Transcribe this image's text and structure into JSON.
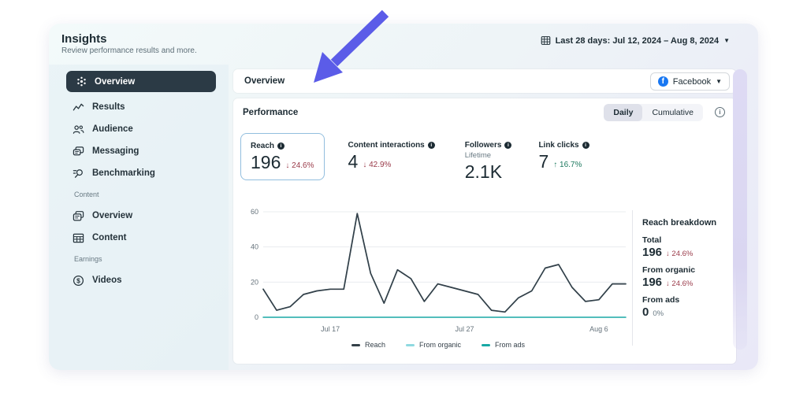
{
  "page": {
    "title": "Insights",
    "subtitle": "Review performance results and more.",
    "date_range": "Last 28 days: Jul 12, 2024 – Aug 8, 2024"
  },
  "sidebar": {
    "items": [
      {
        "label": "Overview",
        "icon": "spark-icon",
        "selected": true
      },
      {
        "label": "Results",
        "icon": "results-icon",
        "selected": false
      },
      {
        "label": "Audience",
        "icon": "audience-icon",
        "selected": false
      },
      {
        "label": "Messaging",
        "icon": "messaging-icon",
        "selected": false
      },
      {
        "label": "Benchmarking",
        "icon": "benchmarking-icon",
        "selected": false
      }
    ],
    "sections": [
      {
        "label": "Content",
        "items": [
          {
            "label": "Overview",
            "icon": "pages-icon"
          },
          {
            "label": "Content",
            "icon": "table-icon"
          }
        ]
      },
      {
        "label": "Earnings",
        "items": [
          {
            "label": "Videos",
            "icon": "dollar-circle-icon"
          }
        ]
      }
    ]
  },
  "main": {
    "header": {
      "title": "Overview",
      "channel": "Facebook"
    },
    "performance": {
      "title": "Performance",
      "toggle": {
        "options": [
          "Daily",
          "Cumulative"
        ],
        "selected": "Daily"
      },
      "metrics": [
        {
          "label": "Reach",
          "value": "196",
          "arrow": "↓",
          "delta": "24.6%",
          "direction": "down",
          "selected": true
        },
        {
          "label": "Content interactions",
          "value": "4",
          "arrow": "↓",
          "delta": "42.9%",
          "direction": "down",
          "selected": false
        },
        {
          "label": "Followers",
          "sublabel": "Lifetime",
          "value": "2.1K",
          "selected": false
        },
        {
          "label": "Link clicks",
          "value": "7",
          "arrow": "↑",
          "delta": "16.7%",
          "direction": "up",
          "selected": false
        }
      ],
      "breakdown": {
        "title": "Reach breakdown",
        "rows": [
          {
            "label": "Total",
            "value": "196",
            "arrow": "↓",
            "delta": "24.6%",
            "direction": "down"
          },
          {
            "label": "From organic",
            "value": "196",
            "arrow": "↓",
            "delta": "24.6%",
            "direction": "down"
          },
          {
            "label": "From ads",
            "value": "0",
            "arrow": "",
            "delta": "0%",
            "direction": "flat"
          }
        ]
      }
    }
  },
  "chart_data": {
    "type": "line",
    "title": "Reach (daily), last 28 days",
    "x": [
      "Jul 12",
      "Jul 13",
      "Jul 14",
      "Jul 15",
      "Jul 16",
      "Jul 17",
      "Jul 18",
      "Jul 19",
      "Jul 20",
      "Jul 21",
      "Jul 22",
      "Jul 23",
      "Jul 24",
      "Jul 25",
      "Jul 26",
      "Jul 27",
      "Jul 28",
      "Jul 29",
      "Jul 30",
      "Jul 31",
      "Aug 1",
      "Aug 2",
      "Aug 3",
      "Aug 4",
      "Aug 5",
      "Aug 6",
      "Aug 7",
      "Aug 8"
    ],
    "series": [
      {
        "name": "Reach",
        "color": "#333f48",
        "values": [
          16,
          4,
          6,
          13,
          15,
          16,
          16,
          59,
          25,
          8,
          27,
          22,
          9,
          19,
          17,
          15,
          13,
          4,
          3,
          11,
          15,
          28,
          30,
          17,
          9,
          10,
          19,
          19
        ]
      },
      {
        "name": "From organic",
        "color": "#8fd9e0",
        "values": [
          16,
          4,
          6,
          13,
          15,
          16,
          16,
          59,
          25,
          8,
          27,
          22,
          9,
          19,
          17,
          15,
          13,
          4,
          3,
          11,
          15,
          28,
          30,
          17,
          9,
          10,
          19,
          19
        ]
      },
      {
        "name": "From ads",
        "color": "#18a9a5",
        "values": [
          0,
          0,
          0,
          0,
          0,
          0,
          0,
          0,
          0,
          0,
          0,
          0,
          0,
          0,
          0,
          0,
          0,
          0,
          0,
          0,
          0,
          0,
          0,
          0,
          0,
          0,
          0,
          0
        ]
      }
    ],
    "yticks": [
      0,
      20,
      40,
      60
    ],
    "ylim": [
      0,
      60
    ],
    "xtick_labels": [
      "Jul 17",
      "Jul 27",
      "Aug 6"
    ],
    "xtick_indices": [
      5,
      15,
      25
    ],
    "grid": true,
    "legend_position": "bottom"
  },
  "colors": {
    "accent_blue": "#1877f2",
    "negative": "#9a3b4a",
    "positive": "#1f7a60",
    "selected_pill": "#2b3a45",
    "arrow_annotation": "#5b5ce8"
  }
}
